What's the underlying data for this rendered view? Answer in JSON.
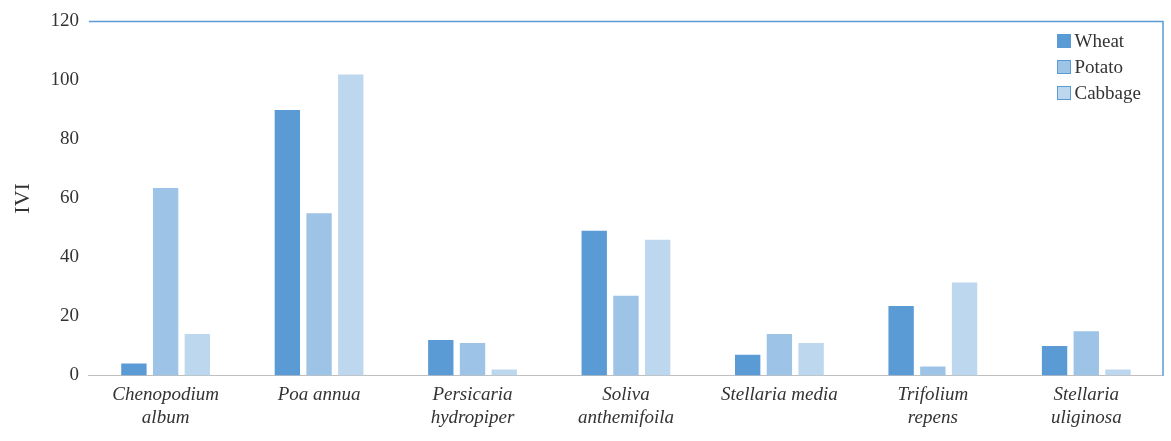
{
  "chart_data": {
    "type": "bar",
    "ylabel": "IVI",
    "categories": [
      "Chenopodium\nalbum",
      "Poa annua",
      "Persicaria\nhydropiper",
      "Soliva\nanthemifoila",
      "Stellaria media",
      "Trifolium\nrepens",
      "Stellaria\nuliginosa"
    ],
    "series": [
      {
        "name": "Wheat",
        "color": "#5b9bd5",
        "values": [
          4,
          90,
          12,
          49,
          7,
          23.5,
          10
        ]
      },
      {
        "name": "Potato",
        "color": "#9dc3e6",
        "values": [
          63.5,
          55,
          11,
          27,
          14,
          3,
          15
        ]
      },
      {
        "name": "Cabbage",
        "color": "#bdd7ee",
        "values": [
          14,
          102,
          2,
          46,
          11,
          31.5,
          2
        ]
      }
    ],
    "ylim": [
      0,
      120
    ],
    "yticks": [
      0,
      20,
      40,
      60,
      80,
      100,
      120
    ],
    "grid": false,
    "legend": "top right"
  }
}
